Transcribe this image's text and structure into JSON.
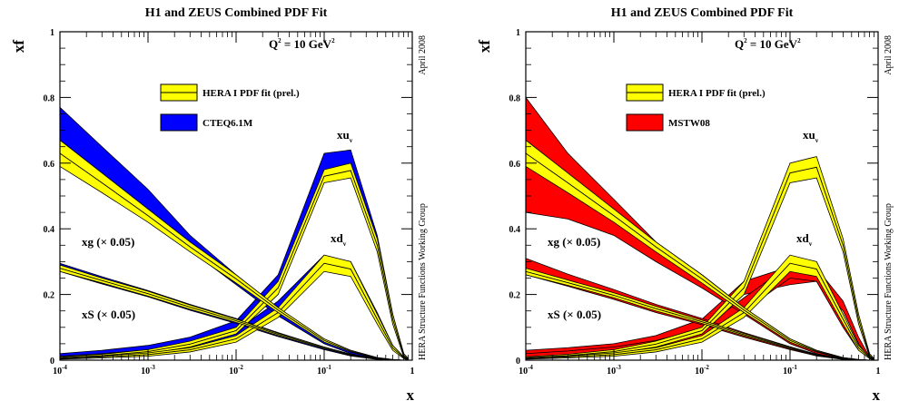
{
  "colors": {
    "hera_fill": "#ffff00",
    "cteq_fill": "#0000ff",
    "mstw_fill": "#ff0000",
    "line": "#000000"
  },
  "chart_data": [
    {
      "type": "area",
      "title": "H1 and ZEUS Combined PDF Fit",
      "xlabel": "x",
      "ylabel": "xf",
      "xscale": "log",
      "xlim": [
        0.0001,
        1
      ],
      "ylim": [
        0,
        1
      ],
      "yticks": [
        "0",
        "0.2",
        "0.4",
        "0.6",
        "0.8",
        "1"
      ],
      "xticks": [
        {
          "base": "10",
          "exp": "-4"
        },
        {
          "base": "10",
          "exp": "-3"
        },
        {
          "base": "10",
          "exp": "-2"
        },
        {
          "base": "10",
          "exp": "-1"
        },
        {
          "base": "1",
          "exp": ""
        }
      ],
      "annotation": {
        "q2": "Q",
        "q2_sup": "2",
        "q2_rest": " = 10 GeV",
        "q2_rest_sup": "2"
      },
      "side_texts": [
        "April 2008",
        "HERA Structure Functions Working Group"
      ],
      "legend": [
        {
          "name": "HERA I PDF fit (prel.)",
          "color": "#ffff00"
        },
        {
          "name": "CTEQ6.1M",
          "color": "#0000ff"
        }
      ],
      "labels": {
        "xuv": "xu",
        "xuv_sub": "v",
        "xdv": "xd",
        "xdv_sub": "v",
        "xg": "xg (× 0.05)",
        "xs": "xS (× 0.05)"
      },
      "series": [
        {
          "name": "xu",
          "x": [
            0.0001,
            0.0003,
            0.001,
            0.003,
            0.01,
            0.03,
            0.1,
            0.2,
            0.4,
            0.6,
            0.8,
            0.9
          ],
          "hera_lo": [
            0.005,
            0.01,
            0.02,
            0.04,
            0.08,
            0.2,
            0.54,
            0.555,
            0.33,
            0.11,
            0.01,
            0.0
          ],
          "hera_hi": [
            0.01,
            0.018,
            0.032,
            0.058,
            0.1,
            0.24,
            0.58,
            0.6,
            0.37,
            0.14,
            0.02,
            0.005
          ],
          "ref_lo": [
            0.01,
            0.018,
            0.03,
            0.052,
            0.098,
            0.22,
            0.57,
            0.59,
            0.35,
            0.12,
            0.01,
            0.0
          ],
          "ref_hi": [
            0.02,
            0.03,
            0.045,
            0.07,
            0.12,
            0.26,
            0.63,
            0.64,
            0.38,
            0.14,
            0.02,
            0.005
          ]
        },
        {
          "name": "xd",
          "x": [
            0.0001,
            0.0003,
            0.001,
            0.003,
            0.01,
            0.03,
            0.1,
            0.2,
            0.4,
            0.6,
            0.8,
            0.9
          ],
          "hera_lo": [
            0.003,
            0.007,
            0.012,
            0.025,
            0.055,
            0.13,
            0.27,
            0.255,
            0.11,
            0.03,
            0.005,
            0.0
          ],
          "hera_hi": [
            0.007,
            0.013,
            0.022,
            0.038,
            0.075,
            0.16,
            0.32,
            0.3,
            0.14,
            0.045,
            0.01,
            0.003
          ],
          "ref_lo": [
            0.005,
            0.01,
            0.018,
            0.033,
            0.065,
            0.14,
            0.285,
            0.275,
            0.125,
            0.035,
            0.005,
            0.0
          ],
          "ref_hi": [
            0.012,
            0.02,
            0.032,
            0.052,
            0.09,
            0.18,
            0.32,
            0.3,
            0.145,
            0.045,
            0.01,
            0.003
          ]
        },
        {
          "name": "xg (× 0.05)",
          "x": [
            0.0001,
            0.0003,
            0.001,
            0.003,
            0.01,
            0.03,
            0.1,
            0.2,
            0.4,
            0.6,
            0.8,
            0.9
          ],
          "hera_lo": [
            0.59,
            0.51,
            0.42,
            0.33,
            0.235,
            0.145,
            0.055,
            0.025,
            0.005,
            0.0,
            0.0,
            0.0
          ],
          "hera_hi": [
            0.67,
            0.57,
            0.46,
            0.36,
            0.26,
            0.16,
            0.065,
            0.03,
            0.008,
            0.002,
            0.0,
            0.0
          ],
          "ref_lo": [
            0.6,
            0.52,
            0.43,
            0.335,
            0.23,
            0.135,
            0.05,
            0.02,
            0.003,
            0.0,
            0.0,
            0.0
          ],
          "ref_hi": [
            0.77,
            0.65,
            0.52,
            0.38,
            0.26,
            0.15,
            0.06,
            0.03,
            0.008,
            0.002,
            0.0,
            0.0
          ]
        },
        {
          "name": "xS (× 0.05)",
          "x": [
            0.0001,
            0.0003,
            0.001,
            0.003,
            0.01,
            0.03,
            0.1,
            0.2,
            0.4,
            0.6,
            0.8,
            0.9
          ],
          "hera_lo": [
            0.27,
            0.235,
            0.195,
            0.155,
            0.115,
            0.075,
            0.035,
            0.015,
            0.003,
            0.0,
            0.0,
            0.0
          ],
          "hera_hi": [
            0.29,
            0.25,
            0.21,
            0.168,
            0.125,
            0.082,
            0.04,
            0.018,
            0.005,
            0.001,
            0.0,
            0.0
          ],
          "ref_lo": [
            0.27,
            0.232,
            0.193,
            0.152,
            0.112,
            0.072,
            0.032,
            0.013,
            0.002,
            0.0,
            0.0,
            0.0
          ],
          "ref_hi": [
            0.295,
            0.254,
            0.212,
            0.17,
            0.127,
            0.084,
            0.04,
            0.018,
            0.005,
            0.001,
            0.0,
            0.0
          ]
        }
      ]
    },
    {
      "type": "area",
      "title": "H1 and ZEUS Combined PDF Fit",
      "xlabel": "x",
      "ylabel": "xf",
      "xscale": "log",
      "xlim": [
        0.0001,
        1
      ],
      "ylim": [
        0,
        1
      ],
      "yticks": [
        "0",
        "0.2",
        "0.4",
        "0.6",
        "0.8",
        "1"
      ],
      "xticks": [
        {
          "base": "10",
          "exp": "-4"
        },
        {
          "base": "10",
          "exp": "-3"
        },
        {
          "base": "10",
          "exp": "-2"
        },
        {
          "base": "10",
          "exp": "-1"
        },
        {
          "base": "1",
          "exp": ""
        }
      ],
      "annotation": {
        "q2": "Q",
        "q2_sup": "2",
        "q2_rest": " = 10 GeV",
        "q2_rest_sup": "2"
      },
      "side_texts": [
        "April 2008",
        "HERA Structure Functions Working Group"
      ],
      "legend": [
        {
          "name": "HERA I PDF fit (prel.)",
          "color": "#ffff00"
        },
        {
          "name": "MSTW08",
          "color": "#ff0000"
        }
      ],
      "labels": {
        "xuv": "xu",
        "xuv_sub": "v",
        "xdv": "xd",
        "xdv_sub": "v",
        "xg": "xg (× 0.05)",
        "xs": "xS (× 0.05)"
      },
      "series": [
        {
          "name": "xu",
          "x": [
            0.0001,
            0.0003,
            0.001,
            0.003,
            0.01,
            0.03,
            0.1,
            0.2,
            0.4,
            0.6,
            0.8,
            0.9
          ],
          "hera_lo": [
            0.005,
            0.01,
            0.02,
            0.04,
            0.08,
            0.2,
            0.54,
            0.555,
            0.33,
            0.11,
            0.01,
            0.0
          ],
          "hera_hi": [
            0.01,
            0.018,
            0.032,
            0.058,
            0.1,
            0.24,
            0.6,
            0.62,
            0.37,
            0.14,
            0.02,
            0.005
          ],
          "ref_lo": [
            0.015,
            0.022,
            0.035,
            0.055,
            0.095,
            0.2,
            0.23,
            0.24,
            0.15,
            0.05,
            0.005,
            0.0
          ],
          "ref_hi": [
            0.03,
            0.038,
            0.05,
            0.075,
            0.125,
            0.24,
            0.285,
            0.28,
            0.18,
            0.07,
            0.01,
            0.003
          ]
        },
        {
          "name": "xd",
          "x": [
            0.0001,
            0.0003,
            0.001,
            0.003,
            0.01,
            0.03,
            0.1,
            0.2,
            0.4,
            0.6,
            0.8,
            0.9
          ],
          "hera_lo": [
            0.003,
            0.007,
            0.012,
            0.025,
            0.055,
            0.13,
            0.27,
            0.255,
            0.11,
            0.03,
            0.005,
            0.0
          ],
          "hera_hi": [
            0.007,
            0.013,
            0.022,
            0.038,
            0.075,
            0.16,
            0.32,
            0.3,
            0.14,
            0.045,
            0.01,
            0.003
          ],
          "ref_lo": [
            0.01,
            0.015,
            0.025,
            0.04,
            0.07,
            0.15,
            0.25,
            0.24,
            0.1,
            0.03,
            0.005,
            0.0
          ],
          "ref_hi": [
            0.02,
            0.028,
            0.04,
            0.06,
            0.095,
            0.19,
            0.29,
            0.28,
            0.13,
            0.04,
            0.01,
            0.003
          ]
        },
        {
          "name": "xg (× 0.05)",
          "x": [
            0.0001,
            0.0003,
            0.001,
            0.003,
            0.01,
            0.03,
            0.1,
            0.2,
            0.4,
            0.6,
            0.8,
            0.9
          ],
          "hera_lo": [
            0.59,
            0.51,
            0.42,
            0.33,
            0.235,
            0.145,
            0.055,
            0.025,
            0.005,
            0.0,
            0.0,
            0.0
          ],
          "hera_hi": [
            0.67,
            0.57,
            0.46,
            0.36,
            0.26,
            0.16,
            0.065,
            0.03,
            0.008,
            0.002,
            0.0,
            0.0
          ],
          "ref_lo": [
            0.45,
            0.43,
            0.38,
            0.3,
            0.22,
            0.14,
            0.05,
            0.02,
            0.003,
            0.0,
            0.0,
            0.0
          ],
          "ref_hi": [
            0.8,
            0.63,
            0.49,
            0.36,
            0.26,
            0.16,
            0.065,
            0.03,
            0.008,
            0.002,
            0.0,
            0.0
          ]
        },
        {
          "name": "xS (× 0.05)",
          "x": [
            0.0001,
            0.0003,
            0.001,
            0.003,
            0.01,
            0.03,
            0.1,
            0.2,
            0.4,
            0.6,
            0.8,
            0.9
          ],
          "hera_lo": [
            0.26,
            0.228,
            0.19,
            0.15,
            0.112,
            0.074,
            0.035,
            0.015,
            0.003,
            0.0,
            0.0,
            0.0
          ],
          "hera_hi": [
            0.28,
            0.244,
            0.205,
            0.164,
            0.122,
            0.081,
            0.04,
            0.018,
            0.005,
            0.001,
            0.0,
            0.0
          ],
          "ref_lo": [
            0.26,
            0.225,
            0.185,
            0.145,
            0.108,
            0.07,
            0.032,
            0.013,
            0.002,
            0.0,
            0.0,
            0.0
          ],
          "ref_hi": [
            0.31,
            0.262,
            0.215,
            0.17,
            0.127,
            0.084,
            0.041,
            0.018,
            0.005,
            0.001,
            0.0,
            0.0
          ]
        }
      ]
    }
  ]
}
